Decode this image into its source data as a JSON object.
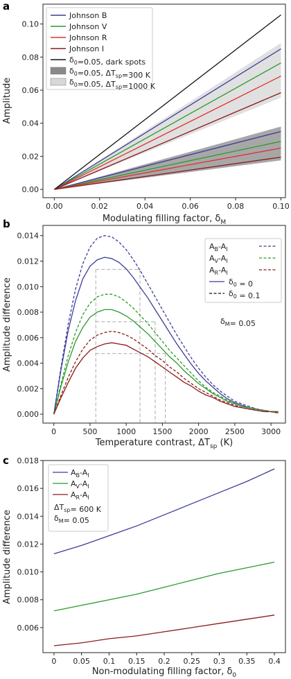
{
  "colors": {
    "B": "#3b3b9a",
    "V": "#2a9a2a",
    "R": "#e03030",
    "I": "#8b1a1a",
    "black": "#111111",
    "dark_band": "#8a8a8a",
    "light_band": "#d8d8d8",
    "guide": "#aaaaaa"
  },
  "chart_data": [
    {
      "panel": "a",
      "type": "line",
      "xlabel": "Modulating filling factor, δ",
      "xlabel_sub": "M",
      "ylabel": "Amplitude",
      "xlim": [
        -0.005,
        0.102
      ],
      "ylim": [
        -0.005,
        0.112
      ],
      "xticks": [
        "0.00",
        "0.02",
        "0.04",
        "0.06",
        "0.08",
        "0.10"
      ],
      "xtick_values": [
        0,
        0.02,
        0.04,
        0.06,
        0.08,
        0.1
      ],
      "yticks": [
        "0.00",
        "0.02",
        "0.04",
        "0.06",
        "0.08",
        "0.10"
      ],
      "ytick_values": [
        0,
        0.02,
        0.04,
        0.06,
        0.08,
        0.1
      ],
      "x": [
        0,
        0.1
      ],
      "series": [
        {
          "name": "Johnson B",
          "values": [
            0,
            0.085
          ],
          "color_key": "B"
        },
        {
          "name": "Johnson V",
          "values": [
            0,
            0.0765
          ],
          "color_key": "V"
        },
        {
          "name": "Johnson R",
          "values": [
            0,
            0.0685
          ],
          "color_key": "R"
        },
        {
          "name": "Johnson I",
          "values": [
            0,
            0.0585
          ],
          "color_key": "I"
        },
        {
          "name": "δ0=0.05, dark spots",
          "values": [
            0,
            0.1055
          ],
          "color_key": "black"
        },
        {
          "name": "",
          "values": [
            0,
            0.035
          ],
          "color_key": "B"
        },
        {
          "name": "",
          "values": [
            0,
            0.029
          ],
          "color_key": "V"
        },
        {
          "name": "",
          "values": [
            0,
            0.025
          ],
          "color_key": "R"
        },
        {
          "name": "",
          "values": [
            0,
            0.0195
          ],
          "color_key": "I"
        }
      ],
      "bands": [
        {
          "name": "δ0=0.05,    ΔTsp=300 K",
          "lower": [
            0,
            0.0175
          ],
          "upper": [
            0,
            0.038
          ],
          "color_key": "dark_band"
        },
        {
          "name": "δ0=0.05,    ΔTsp=1000 K",
          "lower": [
            0,
            0.0555
          ],
          "upper": [
            0,
            0.0885
          ],
          "color_key": "light_band"
        }
      ],
      "legend_position": "top-left",
      "legend": [
        {
          "kind": "line",
          "color_key": "B",
          "text": "Johnson B"
        },
        {
          "kind": "line",
          "color_key": "V",
          "text": "Johnson V"
        },
        {
          "kind": "line",
          "color_key": "R",
          "text": "Johnson R"
        },
        {
          "kind": "line",
          "color_key": "I",
          "text": "Johnson I"
        },
        {
          "kind": "line",
          "color_key": "black",
          "text": "δ0=0.05, dark spots"
        },
        {
          "kind": "patch",
          "color_key": "dark_band",
          "text": "δ0=0.05,    ΔTsp=300 K"
        },
        {
          "kind": "patch",
          "color_key": "light_band",
          "text": "δ0=0.05,    ΔTsp=1000 K"
        }
      ]
    },
    {
      "panel": "b",
      "type": "line",
      "xlabel": "Temperature contrast, ΔT",
      "xlabel_sub": "sp",
      "xlabel_unit": " (K)",
      "ylabel": "Amplitude difference",
      "xlim": [
        -150,
        3200
      ],
      "ylim": [
        -0.0007,
        0.0148
      ],
      "xticks": [
        "0",
        "500",
        "1000",
        "1500",
        "2000",
        "2500",
        "3000"
      ],
      "xtick_values": [
        0,
        500,
        1000,
        1500,
        2000,
        2500,
        3000
      ],
      "yticks": [
        "0.000",
        "0.002",
        "0.004",
        "0.006",
        "0.008",
        "0.010",
        "0.012",
        "0.014"
      ],
      "ytick_values": [
        0,
        0.002,
        0.004,
        0.006,
        0.008,
        0.01,
        0.012,
        0.014
      ],
      "x": [
        0,
        100,
        200,
        300,
        400,
        500,
        600,
        700,
        800,
        900,
        1000,
        1100,
        1200,
        1300,
        1400,
        1500,
        1600,
        1700,
        1800,
        1900,
        2000,
        2100,
        2200,
        2300,
        2400,
        2500,
        2600,
        2700,
        2800,
        2900,
        3000,
        3100
      ],
      "series": [
        {
          "name": "AB-AI",
          "style": "solid",
          "color_key": "B",
          "values": [
            0,
            0.0035,
            0.0066,
            0.0089,
            0.0106,
            0.0116,
            0.0121,
            0.0123,
            0.0122,
            0.0119,
            0.0114,
            0.0107,
            0.0099,
            0.0091,
            0.0082,
            0.0073,
            0.0064,
            0.0055,
            0.0047,
            0.0039,
            0.0032,
            0.0026,
            0.0021,
            0.0016,
            0.0012,
            0.0009,
            0.0007,
            0.0005,
            0.0004,
            0.0003,
            0.0002,
            0.0002
          ]
        },
        {
          "name": "AV-AI",
          "style": "solid",
          "color_key": "V",
          "values": [
            0,
            0.0022,
            0.0041,
            0.0057,
            0.0068,
            0.0076,
            0.008,
            0.0082,
            0.0082,
            0.008,
            0.0077,
            0.0073,
            0.0068,
            0.0063,
            0.0057,
            0.0051,
            0.0045,
            0.004,
            0.0034,
            0.0029,
            0.0024,
            0.002,
            0.0016,
            0.0013,
            0.001,
            0.0008,
            0.0006,
            0.0005,
            0.0004,
            0.0003,
            0.0002,
            0.0002
          ]
        },
        {
          "name": "AR-AI",
          "style": "solid",
          "color_key": "I",
          "values": [
            0,
            0.0013,
            0.0025,
            0.0036,
            0.0044,
            0.005,
            0.0053,
            0.0055,
            0.0056,
            0.0055,
            0.0054,
            0.0051,
            0.0048,
            0.0045,
            0.0041,
            0.0037,
            0.0033,
            0.0029,
            0.0025,
            0.0022,
            0.0018,
            0.0015,
            0.0013,
            0.001,
            0.0008,
            0.0006,
            0.0005,
            0.0004,
            0.0003,
            0.0002,
            0.0002,
            0.0001
          ]
        },
        {
          "name": "AB-AI",
          "style": "dashed",
          "color_key": "B",
          "values": [
            0,
            0.0037,
            0.0071,
            0.0098,
            0.0118,
            0.0131,
            0.0138,
            0.014,
            0.0139,
            0.0135,
            0.0129,
            0.0121,
            0.0112,
            0.0102,
            0.0092,
            0.0082,
            0.0072,
            0.0062,
            0.0053,
            0.0044,
            0.0036,
            0.0029,
            0.0023,
            0.0018,
            0.0014,
            0.001,
            0.0008,
            0.0006,
            0.0004,
            0.0003,
            0.0002,
            0.0002
          ]
        },
        {
          "name": "AV-AI",
          "style": "dashed",
          "color_key": "V",
          "values": [
            0,
            0.0024,
            0.0046,
            0.0064,
            0.0078,
            0.0087,
            0.0092,
            0.0094,
            0.0094,
            0.0092,
            0.0088,
            0.0083,
            0.0077,
            0.0071,
            0.0064,
            0.0057,
            0.005,
            0.0044,
            0.0038,
            0.0032,
            0.0026,
            0.0021,
            0.0017,
            0.0014,
            0.0011,
            0.0008,
            0.0006,
            0.0005,
            0.0004,
            0.0003,
            0.0002,
            0.0002
          ]
        },
        {
          "name": "AR-AI",
          "style": "dashed",
          "color_key": "I",
          "values": [
            0,
            0.0015,
            0.0029,
            0.0041,
            0.0051,
            0.0058,
            0.0062,
            0.0064,
            0.0065,
            0.0064,
            0.0062,
            0.0059,
            0.0055,
            0.0051,
            0.0046,
            0.0042,
            0.0037,
            0.0033,
            0.0028,
            0.0024,
            0.002,
            0.0017,
            0.0014,
            0.0011,
            0.0009,
            0.0007,
            0.0005,
            0.0004,
            0.0003,
            0.0002,
            0.0002,
            0.0001
          ]
        }
      ],
      "guides": [
        {
          "y": 0.01135,
          "x_from": 580,
          "x_to": 1190
        },
        {
          "y": 0.00725,
          "x_from": 580,
          "x_to": 1400
        },
        {
          "y": 0.00475,
          "x_from": 580,
          "x_to": 1540
        }
      ],
      "guide_verticals": [
        580,
        1190,
        1400,
        1540
      ],
      "legend_position": "top-right",
      "legend": [
        {
          "text": "AB-AI",
          "main": "A",
          "sub1": "B",
          "sub2": "I",
          "color_key": "B",
          "both": true
        },
        {
          "text": "AV-AI",
          "main": "A",
          "sub1": "V",
          "sub2": "I",
          "color_key": "V",
          "both": true
        },
        {
          "text": "AR-AI",
          "main": "A",
          "sub1": "R",
          "sub2": "I",
          "color_key": "I",
          "both": true
        },
        {
          "text": "δ0 = 0",
          "color_key": "B",
          "style": "solid"
        },
        {
          "text": "δ0 = 0.1",
          "color_key": "black",
          "style": "dashed"
        }
      ],
      "annotation": "δM= 0.05"
    },
    {
      "panel": "c",
      "type": "line",
      "xlabel": "Non-modulating filling factor, δ",
      "xlabel_sub": "0",
      "ylabel": "Amplitude difference",
      "xlim": [
        -0.02,
        0.42
      ],
      "ylim": [
        0.0042,
        0.018
      ],
      "xticks": [
        "0",
        "0.05",
        "0.1",
        "0.15",
        "0.2",
        "0.25",
        "0.3",
        "0.35",
        "0.4"
      ],
      "xtick_values": [
        0,
        0.05,
        0.1,
        0.15,
        0.2,
        0.25,
        0.3,
        0.35,
        0.4
      ],
      "yticks": [
        "0.006",
        "0.008",
        "0.010",
        "0.012",
        "0.014",
        "0.016",
        "0.018"
      ],
      "ytick_values": [
        0.006,
        0.008,
        0.01,
        0.012,
        0.014,
        0.016,
        0.018
      ],
      "x": [
        0,
        0.05,
        0.1,
        0.15,
        0.2,
        0.25,
        0.3,
        0.35,
        0.4
      ],
      "series": [
        {
          "name": "AB-AI",
          "color_key": "B",
          "values": [
            0.0113,
            0.0119,
            0.0126,
            0.0133,
            0.0141,
            0.0149,
            0.0157,
            0.0165,
            0.0174
          ]
        },
        {
          "name": "AV-AI",
          "color_key": "V",
          "values": [
            0.0072,
            0.0076,
            0.008,
            0.0084,
            0.0089,
            0.0094,
            0.0099,
            0.0103,
            0.0107
          ]
        },
        {
          "name": "AR-AI",
          "color_key": "I",
          "values": [
            0.0047,
            0.0049,
            0.0052,
            0.0054,
            0.0057,
            0.006,
            0.0063,
            0.0066,
            0.0069
          ]
        }
      ],
      "legend_position": "top-left",
      "legend": [
        {
          "text": "AB-AI",
          "main": "A",
          "sub1": "B",
          "sub2": "I",
          "color_key": "B"
        },
        {
          "text": "AV-AI",
          "main": "A",
          "sub1": "V",
          "sub2": "I",
          "color_key": "V"
        },
        {
          "text": "AR-AI",
          "main": "A",
          "sub1": "R",
          "sub2": "I",
          "color_key": "I"
        }
      ],
      "legend_notes": [
        "ΔTsp= 600 K",
        "δM= 0.05"
      ]
    }
  ]
}
